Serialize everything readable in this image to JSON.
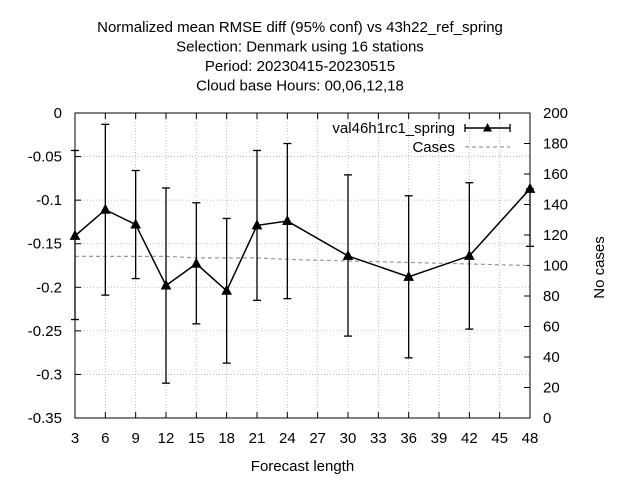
{
  "chart_data": {
    "type": "line",
    "title_lines": [
      "Normalized mean RMSE diff (95% conf) vs 43h22_ref_spring",
      "Selection: Denmark using    16 stations",
      "Period: 20230415-20230515",
      "Cloud base   Hours:  00,06,12,18"
    ],
    "xlabel": "Forecast length",
    "ylabel": "",
    "y2label": "No cases",
    "xlim": [
      3,
      48
    ],
    "ylim": [
      -0.35,
      0
    ],
    "y2lim": [
      0,
      200
    ],
    "x_ticks": [
      3,
      6,
      9,
      12,
      15,
      18,
      21,
      24,
      27,
      30,
      33,
      36,
      39,
      42,
      45,
      48
    ],
    "y_ticks": [
      0,
      -0.05,
      -0.1,
      -0.15,
      -0.2,
      -0.25,
      -0.3,
      -0.35
    ],
    "y_tick_labels": [
      "0",
      "-0.05",
      "-0.1",
      "-0.15",
      "-0.2",
      "-0.25",
      "-0.3",
      "-0.35"
    ],
    "y2_ticks": [
      0,
      20,
      40,
      60,
      80,
      100,
      120,
      140,
      160,
      180,
      200
    ],
    "grid": true,
    "legend_position": "top-right",
    "series": [
      {
        "name": "val46h1rc1_spring",
        "color": "#000000",
        "marker": "triangle",
        "x": [
          3,
          6,
          9,
          12,
          15,
          18,
          21,
          24,
          30,
          36,
          42,
          48
        ],
        "y": [
          -0.141,
          -0.111,
          -0.128,
          -0.198,
          -0.173,
          -0.204,
          -0.129,
          -0.124,
          -0.164,
          -0.188,
          -0.164,
          -0.087
        ],
        "err_low": [
          -0.237,
          -0.209,
          -0.19,
          -0.31,
          -0.242,
          -0.287,
          -0.215,
          -0.213,
          -0.256,
          -0.281,
          -0.248,
          -0.153
        ],
        "err_high": [
          -0.043,
          -0.013,
          -0.066,
          -0.086,
          -0.103,
          -0.121,
          -0.043,
          -0.035,
          -0.071,
          -0.095,
          -0.08,
          -0.087
        ]
      },
      {
        "name": "Cases",
        "color": "#999999",
        "dashed": true,
        "axis": "right",
        "x": [
          3,
          6,
          9,
          12,
          15,
          18,
          21,
          24,
          30,
          36,
          42,
          48
        ],
        "y": [
          106,
          106,
          106,
          106,
          105,
          105,
          105,
          104,
          103,
          102,
          101,
          100
        ]
      }
    ]
  }
}
